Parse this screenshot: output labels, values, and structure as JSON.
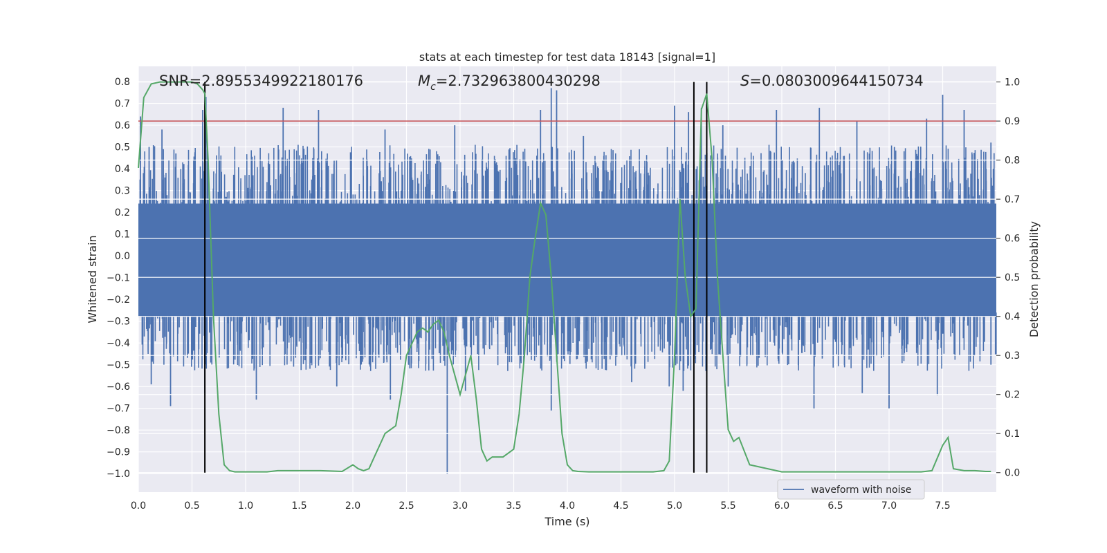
{
  "chart_data": {
    "type": "line",
    "title": "stats at each timestep for test data 18143 [signal=1]",
    "xlabel": "Time (s)",
    "ylabel": "Whitened strain",
    "y2label": "Detection probability",
    "xlim": [
      0.0,
      8.0
    ],
    "ylim": [
      -1.085,
      0.87
    ],
    "y2lim": [
      -0.05,
      1.04
    ],
    "xticks": [
      "0.0",
      "0.5",
      "1.0",
      "1.5",
      "2.0",
      "2.5",
      "3.0",
      "3.5",
      "4.0",
      "4.5",
      "5.0",
      "5.5",
      "6.0",
      "6.5",
      "7.0",
      "7.5"
    ],
    "yticks": [
      "0.8",
      "0.7",
      "0.6",
      "0.5",
      "0.4",
      "0.3",
      "0.2",
      "0.1",
      "0.0",
      "−0.1",
      "−0.2",
      "−0.3",
      "−0.4",
      "−0.5",
      "−0.6",
      "−0.7",
      "−0.8",
      "−0.9",
      "−1.0"
    ],
    "y2ticks": [
      "1.0",
      "0.9",
      "0.8",
      "0.7",
      "0.6",
      "0.5",
      "0.4",
      "0.3",
      "0.2",
      "0.1",
      "0.0"
    ],
    "grid": true,
    "legend_position": "bottom-right",
    "annotations": {
      "snr": "SNR=2.8955349922180176",
      "mc_symbol": "M",
      "mc_sub": "c",
      "mc_value": "=2.732963800430298",
      "s_symbol": "S",
      "s_value": "=0.0803009644150734"
    },
    "threshold": {
      "y2": 0.9,
      "color": "#c44e52"
    },
    "vlines_x": [
      0.62,
      5.18,
      5.3
    ],
    "series": [
      {
        "name": "waveform with noise",
        "color": "#4c72b0",
        "band_upper": 0.24,
        "band_lower": -0.28,
        "spikes": [
          [
            0.02,
            0.64
          ],
          [
            0.1,
            0.5
          ],
          [
            0.22,
            0.58
          ],
          [
            0.35,
            0.47
          ],
          [
            0.6,
            0.67
          ],
          [
            0.63,
            0.73
          ],
          [
            1.35,
            0.68
          ],
          [
            1.68,
            0.67
          ],
          [
            2.3,
            0.58
          ],
          [
            2.95,
            0.6
          ],
          [
            3.75,
            0.67
          ],
          [
            3.85,
            0.77
          ],
          [
            3.9,
            0.76
          ],
          [
            4.15,
            0.55
          ],
          [
            5.0,
            0.69
          ],
          [
            5.13,
            0.66
          ],
          [
            5.25,
            0.68
          ],
          [
            5.45,
            0.6
          ],
          [
            5.95,
            0.67
          ],
          [
            6.35,
            0.68
          ],
          [
            6.7,
            0.62
          ],
          [
            7.05,
            0.5
          ],
          [
            7.35,
            0.63
          ],
          [
            7.5,
            0.74
          ],
          [
            7.7,
            0.67
          ],
          [
            7.95,
            0.52
          ],
          [
            0.12,
            -0.59
          ],
          [
            0.3,
            -0.69
          ],
          [
            0.62,
            -0.63
          ],
          [
            1.1,
            -0.66
          ],
          [
            1.85,
            -0.6
          ],
          [
            2.35,
            -0.66
          ],
          [
            2.88,
            -1.0
          ],
          [
            3.05,
            -0.62
          ],
          [
            3.85,
            -0.71
          ],
          [
            4.6,
            -0.58
          ],
          [
            4.95,
            -0.6
          ],
          [
            5.08,
            -0.62
          ],
          [
            5.5,
            -0.6
          ],
          [
            6.3,
            -0.7
          ],
          [
            6.75,
            -0.63
          ],
          [
            7.0,
            -0.7
          ],
          [
            7.45,
            -0.64
          ],
          [
            7.95,
            -0.5
          ]
        ]
      },
      {
        "name": "Detection probability",
        "color": "#55a868",
        "axis": "y2",
        "x": [
          0.0,
          0.05,
          0.12,
          0.2,
          0.3,
          0.4,
          0.5,
          0.55,
          0.6,
          0.62,
          0.65,
          0.7,
          0.75,
          0.8,
          0.85,
          0.9,
          1.0,
          1.2,
          1.3,
          1.4,
          1.5,
          1.7,
          1.9,
          2.0,
          2.05,
          2.1,
          2.15,
          2.2,
          2.3,
          2.4,
          2.45,
          2.5,
          2.6,
          2.65,
          2.7,
          2.75,
          2.8,
          2.85,
          2.9,
          3.0,
          3.05,
          3.1,
          3.15,
          3.2,
          3.25,
          3.3,
          3.4,
          3.5,
          3.55,
          3.6,
          3.65,
          3.7,
          3.75,
          3.8,
          3.85,
          3.9,
          3.95,
          4.0,
          4.05,
          4.1,
          4.2,
          4.4,
          4.6,
          4.8,
          4.9,
          4.95,
          5.0,
          5.05,
          5.1,
          5.15,
          5.2,
          5.25,
          5.3,
          5.35,
          5.4,
          5.45,
          5.5,
          5.55,
          5.6,
          5.7,
          6.0,
          6.5,
          7.0,
          7.3,
          7.4,
          7.5,
          7.55,
          7.6,
          7.7,
          7.8,
          7.9,
          7.95
        ],
        "values": [
          0.78,
          0.96,
          0.995,
          1.0,
          1.0,
          1.0,
          1.0,
          0.995,
          0.98,
          0.97,
          0.8,
          0.4,
          0.15,
          0.02,
          0.005,
          0.002,
          0.002,
          0.002,
          0.005,
          0.005,
          0.005,
          0.005,
          0.003,
          0.02,
          0.01,
          0.005,
          0.01,
          0.04,
          0.1,
          0.12,
          0.2,
          0.3,
          0.36,
          0.37,
          0.36,
          0.38,
          0.39,
          0.36,
          0.3,
          0.2,
          0.25,
          0.3,
          0.19,
          0.06,
          0.03,
          0.04,
          0.04,
          0.06,
          0.15,
          0.3,
          0.5,
          0.6,
          0.69,
          0.66,
          0.5,
          0.3,
          0.1,
          0.02,
          0.005,
          0.003,
          0.002,
          0.002,
          0.002,
          0.002,
          0.005,
          0.03,
          0.3,
          0.7,
          0.5,
          0.4,
          0.42,
          0.93,
          0.97,
          0.8,
          0.5,
          0.3,
          0.11,
          0.08,
          0.09,
          0.02,
          0.002,
          0.002,
          0.002,
          0.002,
          0.005,
          0.07,
          0.09,
          0.01,
          0.005,
          0.005,
          0.003,
          0.003
        ]
      }
    ]
  }
}
